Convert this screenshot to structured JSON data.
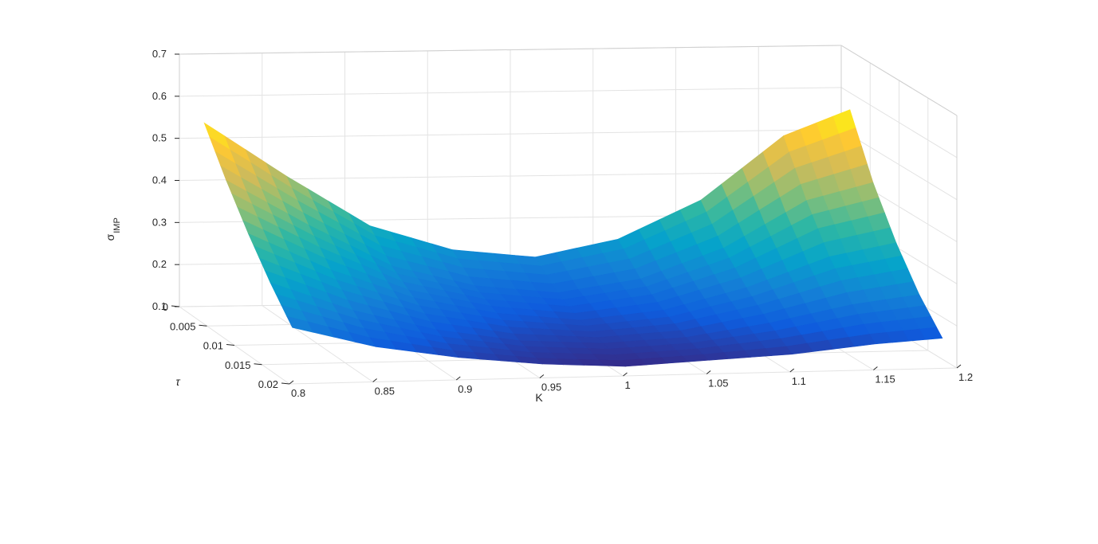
{
  "chart_data": {
    "type": "surface3d",
    "title": "",
    "xlabel": "K",
    "ylabel": "τ",
    "zlabel": "σIMP",
    "zlabel_main": "σ",
    "zlabel_sub": "IMP",
    "xlim": [
      0.8,
      1.2
    ],
    "ylim": [
      0,
      0.02
    ],
    "zlim": [
      0.1,
      0.7
    ],
    "x_ticks": [
      0.8,
      0.85,
      0.9,
      0.95,
      1,
      1.05,
      1.1,
      1.15,
      1.2
    ],
    "x_tick_labels": [
      "0.8",
      "0.85",
      "0.9",
      "0.95",
      "1",
      "1.05",
      "1.1",
      "1.15",
      "1.2"
    ],
    "y_ticks": [
      0,
      0.005,
      0.01,
      0.015,
      0.02
    ],
    "y_tick_labels": [
      "0",
      "0.005",
      "0.01",
      "0.015",
      "0.02"
    ],
    "z_ticks": [
      0.1,
      0.2,
      0.3,
      0.4,
      0.5,
      0.6,
      0.7
    ],
    "z_tick_labels": [
      "0.1",
      "0.2",
      "0.3",
      "0.4",
      "0.5",
      "0.6",
      "0.7"
    ],
    "grid": true,
    "colormap": "parula",
    "colormap_colors": [
      "#352a87",
      "#0f5cdd",
      "#1481d6",
      "#06a4ca",
      "#2eb7a4",
      "#87bf77",
      "#d1bb59",
      "#fec832",
      "#f9fb0e"
    ],
    "surface_x": [
      0.81,
      0.86,
      0.91,
      0.96,
      1.01,
      1.06,
      1.11,
      1.16,
      1.2
    ],
    "surface_y": [
      0.0015,
      0.0055,
      0.0095,
      0.0135,
      0.0175
    ],
    "surface_z": [
      [
        0.55,
        0.42,
        0.3,
        0.24,
        0.22,
        0.26,
        0.35,
        0.5,
        0.56
      ],
      [
        0.45,
        0.34,
        0.24,
        0.19,
        0.17,
        0.2,
        0.27,
        0.38,
        0.42
      ],
      [
        0.36,
        0.27,
        0.2,
        0.16,
        0.14,
        0.16,
        0.21,
        0.28,
        0.31
      ],
      [
        0.28,
        0.21,
        0.16,
        0.13,
        0.12,
        0.13,
        0.16,
        0.2,
        0.22
      ],
      [
        0.21,
        0.16,
        0.13,
        0.11,
        0.1,
        0.11,
        0.12,
        0.14,
        0.15
      ]
    ]
  }
}
